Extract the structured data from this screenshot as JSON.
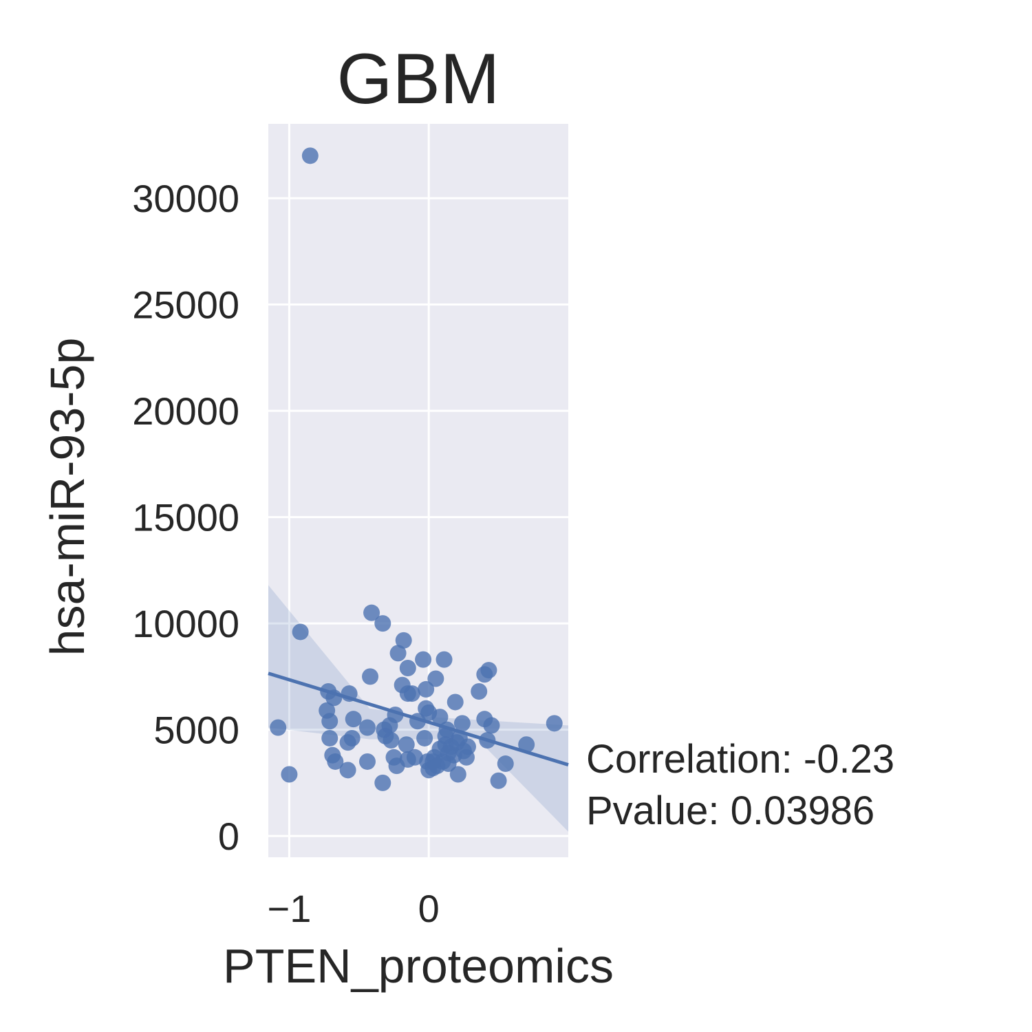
{
  "chart_data": {
    "type": "scatter",
    "title": "GBM",
    "xlabel": "PTEN_proteomics",
    "ylabel": "hsa-miR-93-5p",
    "xlim": [
      -1.15,
      1.0
    ],
    "ylim": [
      -1000,
      33500
    ],
    "xticks": [
      -1,
      0
    ],
    "xtick_labels": [
      "−1",
      "0"
    ],
    "yticks": [
      0,
      5000,
      10000,
      15000,
      20000,
      25000,
      30000
    ],
    "ytick_labels": [
      "0",
      "5000",
      "10000",
      "15000",
      "20000",
      "25000",
      "30000"
    ],
    "grid": true,
    "colors": {
      "background": "#eaeaf2",
      "grid": "#ffffff",
      "point": "#4c72b0",
      "band": "#4c72b0",
      "text": "#262626"
    },
    "regression": {
      "slope": -2000,
      "intercept": 5350,
      "ci_at_xmin": [
        5100,
        11800
      ],
      "ci_mid": [
        4550,
        5600
      ],
      "ci_at_xmax": [
        200,
        5200
      ]
    },
    "annotation": {
      "correlation": "Correlation: -0.23",
      "pvalue": "Pvalue: 0.03986"
    },
    "points": [
      [
        -0.85,
        32000
      ],
      [
        -0.92,
        9600
      ],
      [
        -1.08,
        5100
      ],
      [
        -1.0,
        2900
      ],
      [
        -0.72,
        6800
      ],
      [
        -0.68,
        6500
      ],
      [
        -0.57,
        6700
      ],
      [
        -0.73,
        5900
      ],
      [
        -0.71,
        5400
      ],
      [
        -0.71,
        4600
      ],
      [
        -0.69,
        3800
      ],
      [
        -0.67,
        3500
      ],
      [
        -0.58,
        3100
      ],
      [
        -0.58,
        4400
      ],
      [
        -0.55,
        4600
      ],
      [
        -0.54,
        5500
      ],
      [
        -0.44,
        3500
      ],
      [
        -0.44,
        5100
      ],
      [
        -0.41,
        10500
      ],
      [
        -0.33,
        10000
      ],
      [
        -0.42,
        7500
      ],
      [
        -0.32,
        5000
      ],
      [
        -0.31,
        4700
      ],
      [
        -0.33,
        2500
      ],
      [
        -0.28,
        5200
      ],
      [
        -0.27,
        4500
      ],
      [
        -0.25,
        3700
      ],
      [
        -0.23,
        3300
      ],
      [
        -0.24,
        5700
      ],
      [
        -0.22,
        8600
      ],
      [
        -0.18,
        9200
      ],
      [
        -0.19,
        7100
      ],
      [
        -0.15,
        7900
      ],
      [
        -0.15,
        6700
      ],
      [
        -0.12,
        6700
      ],
      [
        -0.16,
        4300
      ],
      [
        -0.15,
        3600
      ],
      [
        -0.08,
        5400
      ],
      [
        -0.04,
        8300
      ],
      [
        -0.02,
        6900
      ],
      [
        -0.02,
        6000
      ],
      [
        -0.03,
        4600
      ],
      [
        0.0,
        5800
      ],
      [
        -0.01,
        3500
      ],
      [
        0.0,
        3100
      ],
      [
        0.03,
        3200
      ],
      [
        0.04,
        3700
      ],
      [
        0.05,
        7400
      ],
      [
        0.08,
        5600
      ],
      [
        0.08,
        4100
      ],
      [
        0.1,
        3500
      ],
      [
        0.11,
        8300
      ],
      [
        0.12,
        4700
      ],
      [
        0.13,
        5000
      ],
      [
        0.14,
        3400
      ],
      [
        0.16,
        4200
      ],
      [
        0.18,
        3800
      ],
      [
        0.19,
        6300
      ],
      [
        0.21,
        2900
      ],
      [
        0.22,
        4600
      ],
      [
        0.24,
        5300
      ],
      [
        0.25,
        4000
      ],
      [
        0.27,
        3700
      ],
      [
        0.28,
        4200
      ],
      [
        0.36,
        6800
      ],
      [
        0.4,
        7600
      ],
      [
        0.4,
        5500
      ],
      [
        0.43,
        7800
      ],
      [
        0.45,
        5200
      ],
      [
        0.42,
        4500
      ],
      [
        0.5,
        2600
      ],
      [
        0.55,
        3400
      ],
      [
        0.7,
        4300
      ],
      [
        0.9,
        5300
      ],
      [
        0.14,
        3900
      ],
      [
        0.03,
        3500
      ],
      [
        -0.1,
        3700
      ],
      [
        0.06,
        3300
      ],
      [
        0.12,
        4300
      ],
      [
        0.2,
        4400
      ]
    ]
  }
}
